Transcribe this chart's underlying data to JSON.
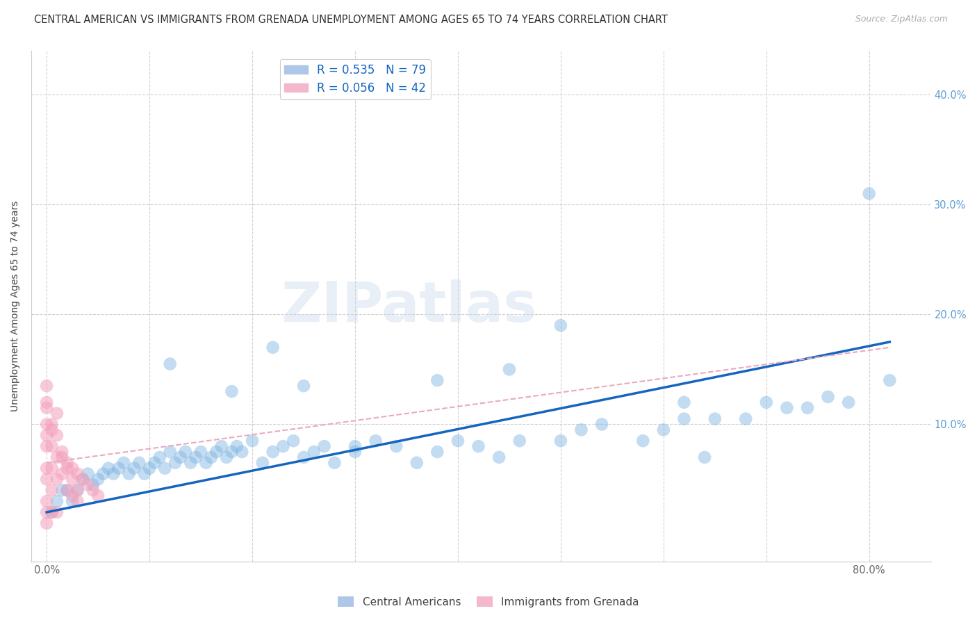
{
  "title": "CENTRAL AMERICAN VS IMMIGRANTS FROM GRENADA UNEMPLOYMENT AMONG AGES 65 TO 74 YEARS CORRELATION CHART",
  "source": "Source: ZipAtlas.com",
  "ylabel": "Unemployment Among Ages 65 to 74 years",
  "x_ticks": [
    0.0,
    0.1,
    0.2,
    0.3,
    0.4,
    0.5,
    0.6,
    0.7,
    0.8
  ],
  "x_tick_labels": [
    "0.0%",
    "",
    "",
    "",
    "",
    "",
    "",
    "",
    "80.0%"
  ],
  "y_ticks": [
    0.0,
    0.1,
    0.2,
    0.3,
    0.4
  ],
  "y_tick_labels_right": [
    "",
    "10.0%",
    "20.0%",
    "30.0%",
    "40.0%"
  ],
  "xlim": [
    -0.015,
    0.86
  ],
  "ylim": [
    -0.025,
    0.44
  ],
  "blue_color": "#7ab3e0",
  "pink_color": "#f4a0bb",
  "blue_line_color": "#1565c0",
  "pink_line_color": "#e8aabf",
  "watermark": "ZIPatlas",
  "blue_scatter_x": [
    0.005,
    0.01,
    0.015,
    0.02,
    0.025,
    0.03,
    0.035,
    0.04,
    0.045,
    0.05,
    0.055,
    0.06,
    0.065,
    0.07,
    0.075,
    0.08,
    0.085,
    0.09,
    0.095,
    0.1,
    0.105,
    0.11,
    0.115,
    0.12,
    0.125,
    0.13,
    0.135,
    0.14,
    0.145,
    0.15,
    0.155,
    0.16,
    0.165,
    0.17,
    0.175,
    0.18,
    0.185,
    0.19,
    0.2,
    0.21,
    0.22,
    0.23,
    0.24,
    0.25,
    0.26,
    0.27,
    0.28,
    0.3,
    0.32,
    0.34,
    0.36,
    0.38,
    0.4,
    0.42,
    0.44,
    0.46,
    0.5,
    0.52,
    0.54,
    0.58,
    0.6,
    0.62,
    0.64,
    0.68,
    0.72,
    0.76,
    0.8,
    0.82,
    0.25,
    0.38,
    0.45,
    0.5,
    0.62,
    0.65,
    0.7,
    0.74,
    0.78,
    0.12,
    0.18,
    0.22,
    0.3
  ],
  "blue_scatter_y": [
    0.02,
    0.03,
    0.04,
    0.04,
    0.03,
    0.04,
    0.05,
    0.055,
    0.045,
    0.05,
    0.055,
    0.06,
    0.055,
    0.06,
    0.065,
    0.055,
    0.06,
    0.065,
    0.055,
    0.06,
    0.065,
    0.07,
    0.06,
    0.075,
    0.065,
    0.07,
    0.075,
    0.065,
    0.07,
    0.075,
    0.065,
    0.07,
    0.075,
    0.08,
    0.07,
    0.075,
    0.08,
    0.075,
    0.085,
    0.065,
    0.075,
    0.08,
    0.085,
    0.07,
    0.075,
    0.08,
    0.065,
    0.075,
    0.085,
    0.08,
    0.065,
    0.075,
    0.085,
    0.08,
    0.07,
    0.085,
    0.085,
    0.095,
    0.1,
    0.085,
    0.095,
    0.105,
    0.07,
    0.105,
    0.115,
    0.125,
    0.31,
    0.14,
    0.135,
    0.14,
    0.15,
    0.19,
    0.12,
    0.105,
    0.12,
    0.115,
    0.12,
    0.155,
    0.13,
    0.17,
    0.08
  ],
  "pink_scatter_x": [
    0.0,
    0.0,
    0.0,
    0.0,
    0.0,
    0.0,
    0.0,
    0.0,
    0.005,
    0.005,
    0.005,
    0.005,
    0.01,
    0.01,
    0.01,
    0.015,
    0.015,
    0.02,
    0.02,
    0.025,
    0.025,
    0.03,
    0.03,
    0.035,
    0.04,
    0.045,
    0.05,
    0.0,
    0.0,
    0.005,
    0.01,
    0.015,
    0.02,
    0.025,
    0.03,
    0.0,
    0.005,
    0.01
  ],
  "pink_scatter_y": [
    0.12,
    0.1,
    0.09,
    0.08,
    0.06,
    0.05,
    0.03,
    0.01,
    0.1,
    0.08,
    0.06,
    0.04,
    0.09,
    0.07,
    0.05,
    0.075,
    0.055,
    0.065,
    0.04,
    0.06,
    0.035,
    0.055,
    0.03,
    0.05,
    0.045,
    0.04,
    0.035,
    0.115,
    0.135,
    0.095,
    0.11,
    0.07,
    0.06,
    0.05,
    0.04,
    0.02,
    0.02,
    0.02
  ],
  "blue_trendline_x": [
    0.0,
    0.82
  ],
  "blue_trendline_y": [
    0.02,
    0.175
  ],
  "pink_trendline_x": [
    0.0,
    0.82
  ],
  "pink_trendline_y": [
    0.065,
    0.17
  ],
  "grid_color": "#cccccc",
  "background_color": "#ffffff",
  "title_fontsize": 10.5,
  "tick_fontsize": 10.5,
  "legend_label_blue": "R = 0.535   N = 79",
  "legend_label_pink": "R = 0.056   N = 42",
  "bottom_legend_blue": "Central Americans",
  "bottom_legend_pink": "Immigrants from Grenada"
}
